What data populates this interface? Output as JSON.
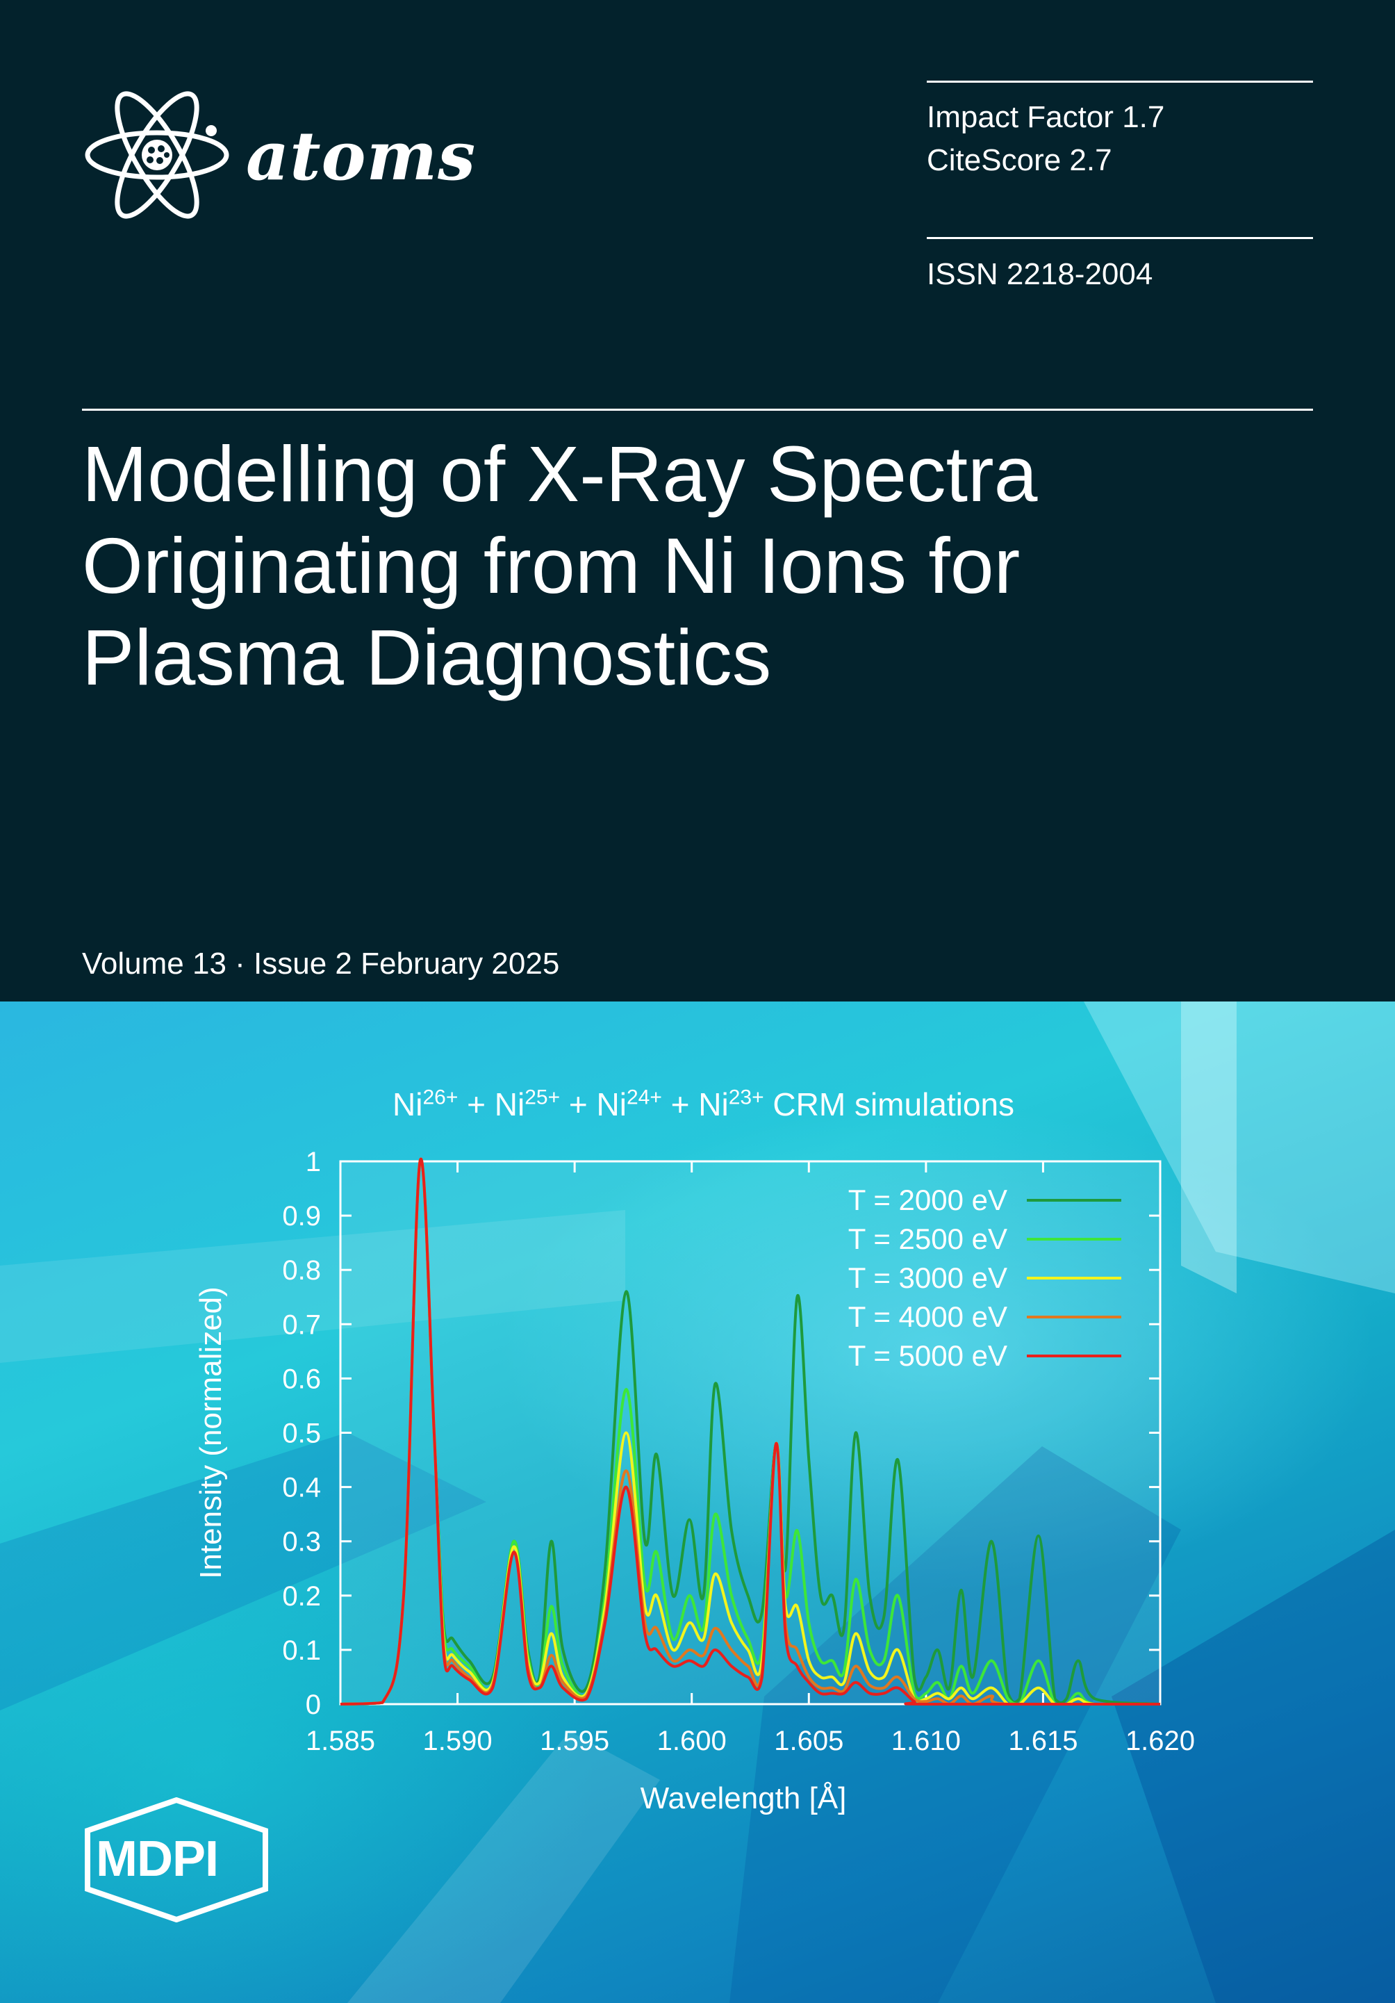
{
  "journal": {
    "name": "atoms",
    "impact_factor": "Impact Factor 1.7",
    "citescore": "CiteScore 2.7",
    "issn": "ISSN 2218-2004"
  },
  "article": {
    "title": "Modelling of X-Ray Spectra\nOriginating from Ni Ions for\nPlasma Diagnostics",
    "volume_line": "Volume 13 · Issue 2 February 2025"
  },
  "publisher": {
    "name": "MDPI"
  },
  "colors": {
    "background": "#03222c",
    "t2000": "#1e9a3c",
    "t2500": "#3ee63a",
    "t3000": "#f2f51e",
    "t4000": "#e07820",
    "t5000": "#e8201c"
  },
  "chart_data": {
    "type": "line",
    "title_parts": [
      {
        "base": "Ni",
        "sup": "26+"
      },
      {
        "base": " + Ni",
        "sup": "25+"
      },
      {
        "base": " + Ni",
        "sup": "24+"
      },
      {
        "base": " + Ni",
        "sup": "23+"
      },
      {
        "base": " CRM simulations",
        "sup": ""
      }
    ],
    "xlabel": "Wavelength [Å]",
    "ylabel": "Intensity (normalized)",
    "xlim": [
      1.585,
      1.62
    ],
    "ylim": [
      0,
      1
    ],
    "x_ticks": [
      "1.585",
      "1.590",
      "1.595",
      "1.600",
      "1.605",
      "1.610",
      "1.615",
      "1.620"
    ],
    "y_ticks": [
      "0",
      "0.1",
      "0.2",
      "0.3",
      "0.4",
      "0.5",
      "0.6",
      "0.7",
      "0.8",
      "0.9",
      "1"
    ],
    "legend_position": "top-right",
    "series": [
      {
        "name": "T = 2000 eV",
        "color": "#1e9a3c",
        "points": [
          [
            1.585,
            0
          ],
          [
            1.5868,
            0.003
          ],
          [
            1.5877,
            0.2
          ],
          [
            1.5884,
            1.0
          ],
          [
            1.589,
            0.5
          ],
          [
            1.5894,
            0.15
          ],
          [
            1.5898,
            0.12
          ],
          [
            1.5905,
            0.08
          ],
          [
            1.5915,
            0.05
          ],
          [
            1.5924,
            0.3
          ],
          [
            1.593,
            0.1
          ],
          [
            1.5935,
            0.05
          ],
          [
            1.594,
            0.3
          ],
          [
            1.5945,
            0.1
          ],
          [
            1.5955,
            0.03
          ],
          [
            1.5963,
            0.25
          ],
          [
            1.5972,
            0.76
          ],
          [
            1.598,
            0.3
          ],
          [
            1.5985,
            0.46
          ],
          [
            1.5992,
            0.2
          ],
          [
            1.5999,
            0.34
          ],
          [
            1.6005,
            0.2
          ],
          [
            1.601,
            0.59
          ],
          [
            1.6017,
            0.32
          ],
          [
            1.6024,
            0.2
          ],
          [
            1.603,
            0.17
          ],
          [
            1.6036,
            0.48
          ],
          [
            1.604,
            0.25
          ],
          [
            1.6045,
            0.75
          ],
          [
            1.605,
            0.45
          ],
          [
            1.6055,
            0.2
          ],
          [
            1.606,
            0.2
          ],
          [
            1.6065,
            0.14
          ],
          [
            1.607,
            0.5
          ],
          [
            1.6076,
            0.2
          ],
          [
            1.6082,
            0.16
          ],
          [
            1.6088,
            0.45
          ],
          [
            1.6095,
            0.05
          ],
          [
            1.61,
            0.05
          ],
          [
            1.6105,
            0.1
          ],
          [
            1.611,
            0.03
          ],
          [
            1.6115,
            0.21
          ],
          [
            1.612,
            0.05
          ],
          [
            1.6128,
            0.3
          ],
          [
            1.6135,
            0.02
          ],
          [
            1.614,
            0.01
          ],
          [
            1.6148,
            0.31
          ],
          [
            1.6155,
            0.01
          ],
          [
            1.616,
            0.01
          ],
          [
            1.6165,
            0.08
          ],
          [
            1.6172,
            0.01
          ],
          [
            1.62,
            0.0
          ]
        ]
      },
      {
        "name": "T = 2500 eV",
        "color": "#3ee63a",
        "points": [
          [
            1.585,
            0
          ],
          [
            1.5868,
            0.003
          ],
          [
            1.5877,
            0.2
          ],
          [
            1.5884,
            1.0
          ],
          [
            1.589,
            0.5
          ],
          [
            1.5894,
            0.14
          ],
          [
            1.5898,
            0.1
          ],
          [
            1.5905,
            0.07
          ],
          [
            1.5915,
            0.04
          ],
          [
            1.5924,
            0.3
          ],
          [
            1.593,
            0.09
          ],
          [
            1.5935,
            0.04
          ],
          [
            1.594,
            0.18
          ],
          [
            1.5945,
            0.07
          ],
          [
            1.5955,
            0.02
          ],
          [
            1.5963,
            0.2
          ],
          [
            1.5972,
            0.58
          ],
          [
            1.598,
            0.22
          ],
          [
            1.5985,
            0.28
          ],
          [
            1.5992,
            0.12
          ],
          [
            1.5999,
            0.2
          ],
          [
            1.6005,
            0.14
          ],
          [
            1.601,
            0.35
          ],
          [
            1.6017,
            0.2
          ],
          [
            1.6024,
            0.12
          ],
          [
            1.603,
            0.1
          ],
          [
            1.6036,
            0.48
          ],
          [
            1.604,
            0.2
          ],
          [
            1.6045,
            0.32
          ],
          [
            1.605,
            0.15
          ],
          [
            1.6055,
            0.08
          ],
          [
            1.606,
            0.08
          ],
          [
            1.6065,
            0.06
          ],
          [
            1.607,
            0.23
          ],
          [
            1.6076,
            0.1
          ],
          [
            1.6082,
            0.08
          ],
          [
            1.6088,
            0.2
          ],
          [
            1.6095,
            0.02
          ],
          [
            1.61,
            0.02
          ],
          [
            1.6105,
            0.04
          ],
          [
            1.611,
            0.01
          ],
          [
            1.6115,
            0.07
          ],
          [
            1.612,
            0.02
          ],
          [
            1.6128,
            0.08
          ],
          [
            1.6135,
            0.01
          ],
          [
            1.614,
            0.0
          ],
          [
            1.6148,
            0.08
          ],
          [
            1.6155,
            0.0
          ],
          [
            1.616,
            0.0
          ],
          [
            1.6165,
            0.02
          ],
          [
            1.6172,
            0.0
          ],
          [
            1.62,
            0.0
          ]
        ]
      },
      {
        "name": "T = 3000 eV",
        "color": "#f2f51e",
        "points": [
          [
            1.585,
            0
          ],
          [
            1.5868,
            0.003
          ],
          [
            1.5877,
            0.2
          ],
          [
            1.5884,
            1.0
          ],
          [
            1.589,
            0.5
          ],
          [
            1.5894,
            0.12
          ],
          [
            1.5898,
            0.09
          ],
          [
            1.5905,
            0.06
          ],
          [
            1.5915,
            0.04
          ],
          [
            1.5924,
            0.29
          ],
          [
            1.593,
            0.08
          ],
          [
            1.5935,
            0.04
          ],
          [
            1.594,
            0.13
          ],
          [
            1.5945,
            0.05
          ],
          [
            1.5955,
            0.02
          ],
          [
            1.5963,
            0.18
          ],
          [
            1.5972,
            0.5
          ],
          [
            1.598,
            0.18
          ],
          [
            1.5985,
            0.2
          ],
          [
            1.5992,
            0.1
          ],
          [
            1.5999,
            0.15
          ],
          [
            1.6005,
            0.12
          ],
          [
            1.601,
            0.24
          ],
          [
            1.6017,
            0.15
          ],
          [
            1.6024,
            0.1
          ],
          [
            1.603,
            0.08
          ],
          [
            1.6036,
            0.48
          ],
          [
            1.604,
            0.18
          ],
          [
            1.6045,
            0.18
          ],
          [
            1.605,
            0.08
          ],
          [
            1.6055,
            0.05
          ],
          [
            1.606,
            0.05
          ],
          [
            1.6065,
            0.04
          ],
          [
            1.607,
            0.13
          ],
          [
            1.6076,
            0.06
          ],
          [
            1.6082,
            0.05
          ],
          [
            1.6088,
            0.1
          ],
          [
            1.6095,
            0.01
          ],
          [
            1.61,
            0.01
          ],
          [
            1.6105,
            0.02
          ],
          [
            1.611,
            0.01
          ],
          [
            1.6115,
            0.03
          ],
          [
            1.612,
            0.01
          ],
          [
            1.6128,
            0.03
          ],
          [
            1.6135,
            0.0
          ],
          [
            1.614,
            0.0
          ],
          [
            1.6148,
            0.03
          ],
          [
            1.6155,
            0.0
          ],
          [
            1.616,
            0.0
          ],
          [
            1.6165,
            0.01
          ],
          [
            1.6172,
            0.0
          ],
          [
            1.62,
            0.0
          ]
        ]
      },
      {
        "name": "T = 4000 eV",
        "color": "#e07820",
        "points": [
          [
            1.585,
            0
          ],
          [
            1.5868,
            0.003
          ],
          [
            1.5877,
            0.2
          ],
          [
            1.5884,
            1.0
          ],
          [
            1.589,
            0.5
          ],
          [
            1.5894,
            0.11
          ],
          [
            1.5898,
            0.08
          ],
          [
            1.5905,
            0.05
          ],
          [
            1.5915,
            0.035
          ],
          [
            1.5924,
            0.28
          ],
          [
            1.593,
            0.07
          ],
          [
            1.5935,
            0.03
          ],
          [
            1.594,
            0.09
          ],
          [
            1.5945,
            0.04
          ],
          [
            1.5955,
            0.015
          ],
          [
            1.5963,
            0.16
          ],
          [
            1.5972,
            0.43
          ],
          [
            1.598,
            0.15
          ],
          [
            1.5985,
            0.14
          ],
          [
            1.5992,
            0.08
          ],
          [
            1.5999,
            0.1
          ],
          [
            1.6005,
            0.09
          ],
          [
            1.601,
            0.14
          ],
          [
            1.6017,
            0.1
          ],
          [
            1.6024,
            0.07
          ],
          [
            1.603,
            0.06
          ],
          [
            1.6036,
            0.48
          ],
          [
            1.604,
            0.15
          ],
          [
            1.6045,
            0.1
          ],
          [
            1.605,
            0.05
          ],
          [
            1.6055,
            0.03
          ],
          [
            1.606,
            0.03
          ],
          [
            1.6065,
            0.025
          ],
          [
            1.607,
            0.07
          ],
          [
            1.6076,
            0.035
          ],
          [
            1.6082,
            0.03
          ],
          [
            1.6088,
            0.05
          ],
          [
            1.6095,
            0.01
          ],
          [
            1.61,
            0.005
          ],
          [
            1.6105,
            0.01
          ],
          [
            1.611,
            0.0
          ],
          [
            1.6115,
            0.015
          ],
          [
            1.612,
            0.0
          ],
          [
            1.6128,
            0.015
          ],
          [
            1.6135,
            0.0
          ],
          [
            1.62,
            0.0
          ]
        ]
      },
      {
        "name": "T = 5000 eV",
        "color": "#e8201c",
        "points": [
          [
            1.585,
            0
          ],
          [
            1.5868,
            0.003
          ],
          [
            1.5877,
            0.2
          ],
          [
            1.5884,
            1.0
          ],
          [
            1.589,
            0.5
          ],
          [
            1.5894,
            0.1
          ],
          [
            1.5898,
            0.07
          ],
          [
            1.5905,
            0.045
          ],
          [
            1.5915,
            0.03
          ],
          [
            1.5924,
            0.28
          ],
          [
            1.593,
            0.06
          ],
          [
            1.5935,
            0.03
          ],
          [
            1.594,
            0.07
          ],
          [
            1.5945,
            0.03
          ],
          [
            1.5955,
            0.01
          ],
          [
            1.5963,
            0.15
          ],
          [
            1.5972,
            0.4
          ],
          [
            1.598,
            0.13
          ],
          [
            1.5985,
            0.1
          ],
          [
            1.5992,
            0.07
          ],
          [
            1.5999,
            0.08
          ],
          [
            1.6005,
            0.07
          ],
          [
            1.601,
            0.1
          ],
          [
            1.6017,
            0.07
          ],
          [
            1.6024,
            0.05
          ],
          [
            1.603,
            0.05
          ],
          [
            1.6036,
            0.48
          ],
          [
            1.604,
            0.13
          ],
          [
            1.6045,
            0.07
          ],
          [
            1.605,
            0.04
          ],
          [
            1.6055,
            0.02
          ],
          [
            1.606,
            0.02
          ],
          [
            1.6065,
            0.02
          ],
          [
            1.607,
            0.04
          ],
          [
            1.6076,
            0.02
          ],
          [
            1.6082,
            0.02
          ],
          [
            1.6088,
            0.03
          ],
          [
            1.6095,
            0.005
          ],
          [
            1.61,
            0.0
          ],
          [
            1.62,
            0.0
          ]
        ]
      }
    ]
  }
}
